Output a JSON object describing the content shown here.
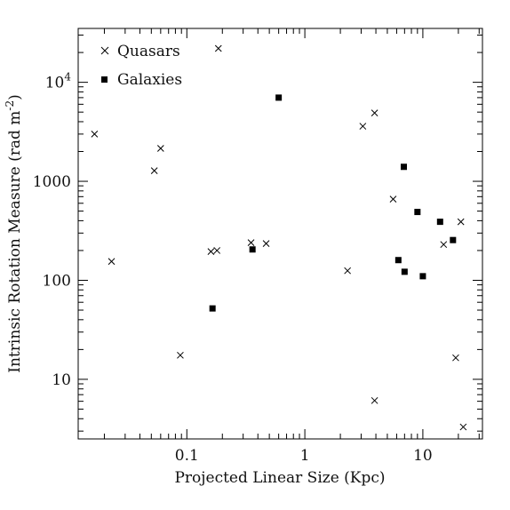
{
  "chart_data": {
    "type": "scatter",
    "title": "",
    "xlabel": "Projected  Linear Size (Kpc)",
    "ylabel_main": "Intrinsic Rotation Measure (rad m",
    "ylabel_exp": "-2",
    "ylabel_close": ")",
    "x_scale": "log",
    "y_scale": "log",
    "xlim": [
      0.012,
      32
    ],
    "ylim": [
      2.5,
      35000
    ],
    "x_ticks": [
      {
        "value": 0.1,
        "label": "0.1"
      },
      {
        "value": 1,
        "label": "1"
      },
      {
        "value": 10,
        "label": "10"
      }
    ],
    "y_ticks": [
      {
        "value": 10,
        "label": "10",
        "exp": ""
      },
      {
        "value": 100,
        "label": "100",
        "exp": ""
      },
      {
        "value": 1000,
        "label": "1000",
        "exp": ""
      },
      {
        "value": 10000,
        "label": "10",
        "exp": "4"
      }
    ],
    "grid": false,
    "legend_position": "top-left",
    "colors": {
      "marker": "#000000",
      "axis": "#000000"
    },
    "series": [
      {
        "name": "Quasars",
        "marker": "cross",
        "points": [
          {
            "x": 0.0165,
            "y": 3000
          },
          {
            "x": 0.023,
            "y": 155
          },
          {
            "x": 0.053,
            "y": 1280
          },
          {
            "x": 0.06,
            "y": 2150
          },
          {
            "x": 0.088,
            "y": 17.5
          },
          {
            "x": 0.16,
            "y": 195
          },
          {
            "x": 0.18,
            "y": 200
          },
          {
            "x": 0.185,
            "y": 22000
          },
          {
            "x": 0.35,
            "y": 240
          },
          {
            "x": 0.47,
            "y": 235
          },
          {
            "x": 2.3,
            "y": 125
          },
          {
            "x": 3.1,
            "y": 3600
          },
          {
            "x": 3.9,
            "y": 4900
          },
          {
            "x": 3.9,
            "y": 6.1
          },
          {
            "x": 5.6,
            "y": 660
          },
          {
            "x": 15,
            "y": 230
          },
          {
            "x": 19,
            "y": 16.5
          },
          {
            "x": 21,
            "y": 390
          },
          {
            "x": 22,
            "y": 3.3
          }
        ]
      },
      {
        "name": "Galaxies",
        "marker": "square",
        "points": [
          {
            "x": 0.165,
            "y": 52
          },
          {
            "x": 0.36,
            "y": 205
          },
          {
            "x": 0.6,
            "y": 7000
          },
          {
            "x": 6.2,
            "y": 160
          },
          {
            "x": 6.9,
            "y": 1400
          },
          {
            "x": 7.0,
            "y": 122
          },
          {
            "x": 9.0,
            "y": 490
          },
          {
            "x": 10.0,
            "y": 110
          },
          {
            "x": 14,
            "y": 390
          },
          {
            "x": 18,
            "y": 255
          }
        ]
      }
    ]
  }
}
